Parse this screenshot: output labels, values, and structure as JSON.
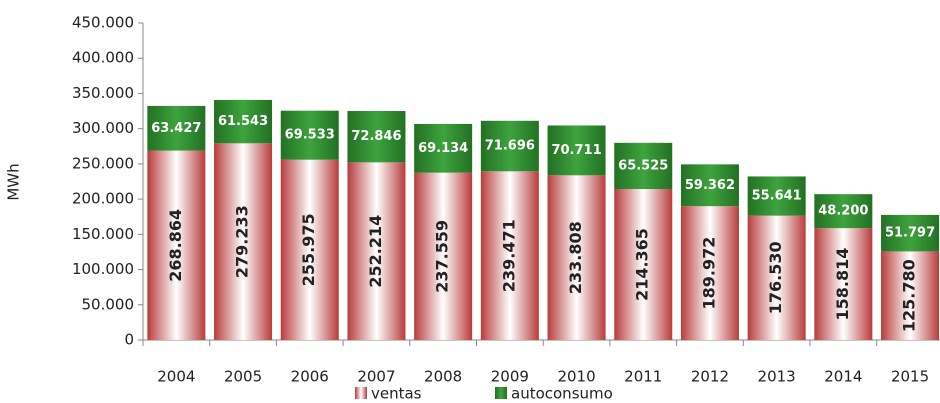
{
  "chart_data": {
    "type": "stacked_bar",
    "ylabel": "MWh",
    "categories": [
      "2004",
      "2005",
      "2006",
      "2007",
      "2008",
      "2009",
      "2010",
      "2011",
      "2012",
      "2013",
      "2014",
      "2015"
    ],
    "series": [
      {
        "name": "ventas",
        "color": "#b83c3c",
        "values": [
          268864,
          279233,
          255975,
          252214,
          237559,
          239471,
          233808,
          214365,
          189972,
          176530,
          158814,
          125780
        ],
        "value_labels": [
          "268.864",
          "279.233",
          "255.975",
          "252.214",
          "237.559",
          "239.471",
          "233.808",
          "214.365",
          "189.972",
          "176.530",
          "158.814",
          "125.780"
        ]
      },
      {
        "name": "autoconsumo",
        "color": "#2e8b2e",
        "values": [
          63427,
          61543,
          69533,
          72846,
          69134,
          71696,
          70711,
          65525,
          59362,
          55641,
          48200,
          51797
        ],
        "value_labels": [
          "63.427",
          "61.543",
          "69.533",
          "72.846",
          "69.134",
          "71.696",
          "70.711",
          "65.525",
          "59.362",
          "55.641",
          "48.200",
          "51.797"
        ]
      }
    ],
    "ylim": [
      0,
      450000
    ],
    "yticks": [
      0,
      {
        "value": 50000,
        "label": "50.000"
      },
      {
        "value": 100000,
        "label": "100.000"
      },
      {
        "value": 150000,
        "label": "150.000"
      },
      {
        "value": 200000,
        "label": "200.000"
      },
      {
        "value": 250000,
        "label": "250.000"
      },
      {
        "value": 300000,
        "label": "300.000"
      },
      {
        "value": 350000,
        "label": "350.000"
      },
      {
        "value": 400000,
        "label": "400.000"
      },
      {
        "value": 450000,
        "label": "450.000"
      }
    ],
    "grid": false
  }
}
